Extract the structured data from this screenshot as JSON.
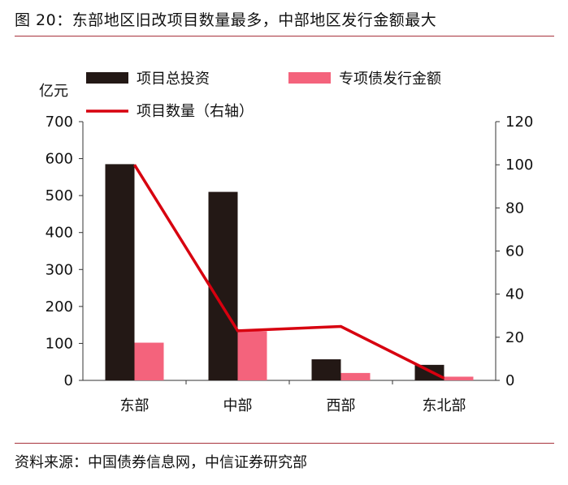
{
  "figure": {
    "title": "图 20：东部地区旧改项目数量最多，中部地区发行金额最大",
    "source": "资料来源：中国债券信息网，中信证券研究部"
  },
  "colors": {
    "bar_total": "#231815",
    "bar_bond": "#f4637c",
    "line": "#d7000f",
    "rule": "#a8323c"
  },
  "chart_data": {
    "type": "bar",
    "categories": [
      "东部",
      "中部",
      "西部",
      "东北部"
    ],
    "series": [
      {
        "name": "项目总投资",
        "kind": "bar",
        "axis": "left",
        "values": [
          585,
          510,
          57,
          42
        ]
      },
      {
        "name": "专项债发行金额",
        "kind": "bar",
        "axis": "left",
        "values": [
          102,
          133,
          20,
          10
        ]
      },
      {
        "name": "项目数量（右轴）",
        "kind": "line",
        "axis": "right",
        "values": [
          100,
          23,
          25,
          1
        ]
      }
    ],
    "left_axis": {
      "unit_label": "亿元",
      "ylim": [
        0,
        700
      ],
      "ticks": [
        0,
        100,
        200,
        300,
        400,
        500,
        600,
        700
      ]
    },
    "right_axis": {
      "ylim": [
        0,
        120
      ],
      "ticks": [
        0,
        20,
        40,
        60,
        80,
        100,
        120
      ]
    },
    "legend_position": "top",
    "grid": false
  }
}
